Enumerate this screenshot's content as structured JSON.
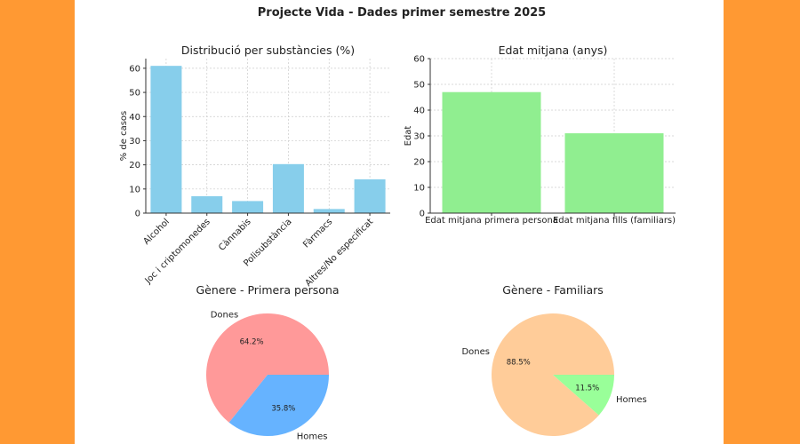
{
  "title": "Projecte Vida - Dades primer semestre 2025",
  "chart_data": [
    {
      "type": "bar",
      "title": "Distribució per substàncies (%)",
      "xlabel": "",
      "ylabel": "% de casos",
      "categories": [
        "Alcohol",
        "Joc i criptomonedes",
        "Cànnabis",
        "Polisubstància",
        "Fàrmacs",
        "Altres/No especificat"
      ],
      "values": [
        61,
        7,
        5,
        20.3,
        1.7,
        14
      ],
      "ylim": [
        0,
        64
      ],
      "yticks": [
        0,
        10,
        20,
        30,
        40,
        50,
        60
      ],
      "grid": true,
      "color": "#87CEEB"
    },
    {
      "type": "bar",
      "title": "Edat mitjana (anys)",
      "xlabel": "",
      "ylabel": "Edat",
      "categories": [
        "Edat mitjana primera persona",
        "Edat mitjana fills (familiars)"
      ],
      "values": [
        47,
        31
      ],
      "ylim": [
        0,
        60
      ],
      "yticks": [
        0,
        10,
        20,
        30,
        40,
        50,
        60
      ],
      "grid": true,
      "color": "#90EE90"
    },
    {
      "type": "pie",
      "title": "Gènere - Primera persona",
      "labels": [
        "Dones",
        "Homes"
      ],
      "values": [
        64.2,
        35.8
      ],
      "pct_labels": [
        "64.2%",
        "35.8%"
      ],
      "colors": [
        "#FF9999",
        "#66B3FF"
      ]
    },
    {
      "type": "pie",
      "title": "Gènere - Familiars",
      "labels": [
        "Dones",
        "Homes"
      ],
      "values": [
        88.5,
        11.5
      ],
      "pct_labels": [
        "88.5%",
        "11.5%"
      ],
      "colors": [
        "#FFCC99",
        "#99FF99"
      ]
    }
  ],
  "background_color": "#FF9933"
}
